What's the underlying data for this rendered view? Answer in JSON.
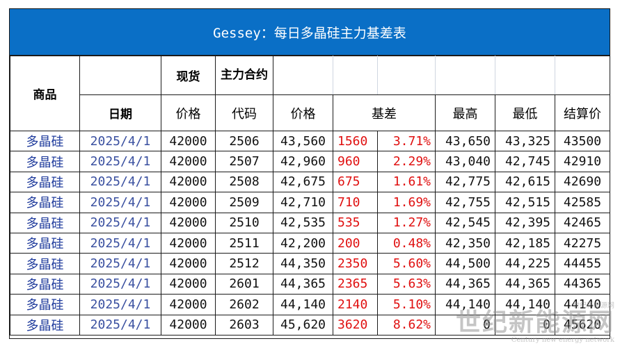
{
  "title": "Gessey：每日多晶硅主力基差表",
  "headers": {
    "product": "商品",
    "spot": "现货",
    "main_contract": "主力合约",
    "date": "日期",
    "price": "价格",
    "code": "代码",
    "futures_price": "价格",
    "basis": "基差",
    "high": "最高",
    "low": "最低",
    "settle": "结算价"
  },
  "rows": [
    {
      "product": "多晶硅",
      "date": "2025/4/1",
      "spot": "42000",
      "code": "2506",
      "price": "43,560",
      "basis": "1560",
      "basis_pct": "3.71%",
      "high": "43,650",
      "low": "43,325",
      "settle": "43500"
    },
    {
      "product": "多晶硅",
      "date": "2025/4/1",
      "spot": "42000",
      "code": "2507",
      "price": "42,960",
      "basis": "960",
      "basis_pct": "2.29%",
      "high": "43,040",
      "low": "42,745",
      "settle": "42910"
    },
    {
      "product": "多晶硅",
      "date": "2025/4/1",
      "spot": "42000",
      "code": "2508",
      "price": "42,675",
      "basis": "675",
      "basis_pct": "1.61%",
      "high": "42,775",
      "low": "42,615",
      "settle": "42690"
    },
    {
      "product": "多晶硅",
      "date": "2025/4/1",
      "spot": "42000",
      "code": "2509",
      "price": "42,710",
      "basis": "710",
      "basis_pct": "1.69%",
      "high": "42,755",
      "low": "42,515",
      "settle": "42585"
    },
    {
      "product": "多晶硅",
      "date": "2025/4/1",
      "spot": "42000",
      "code": "2510",
      "price": "42,535",
      "basis": "535",
      "basis_pct": "1.27%",
      "high": "42,545",
      "low": "42,395",
      "settle": "42465"
    },
    {
      "product": "多晶硅",
      "date": "2025/4/1",
      "spot": "42000",
      "code": "2511",
      "price": "42,200",
      "basis": "200",
      "basis_pct": "0.48%",
      "high": "42,350",
      "low": "42,185",
      "settle": "42275"
    },
    {
      "product": "多晶硅",
      "date": "2025/4/1",
      "spot": "42000",
      "code": "2512",
      "price": "44,350",
      "basis": "2350",
      "basis_pct": "5.60%",
      "high": "44,500",
      "low": "44,225",
      "settle": "44455"
    },
    {
      "product": "多晶硅",
      "date": "2025/4/1",
      "spot": "42000",
      "code": "2601",
      "price": "44,365",
      "basis": "2365",
      "basis_pct": "5.63%",
      "high": "44,365",
      "low": "44,365",
      "settle": "44365"
    },
    {
      "product": "多晶硅",
      "date": "2025/4/1",
      "spot": "42000",
      "code": "2602",
      "price": "44,140",
      "basis": "2140",
      "basis_pct": "5.10%",
      "high": "44,140",
      "low": "44,140",
      "settle": "44140"
    },
    {
      "product": "多晶硅",
      "date": "2025/4/1",
      "spot": "42000",
      "code": "2603",
      "price": "45,620",
      "basis": "3620",
      "basis_pct": "8.62%",
      "high": "0",
      "low": "0",
      "settle": "45620"
    }
  ],
  "watermark": {
    "top": "世纪新能源网",
    "main": "世纪新能源网",
    "sub": "Century new energy network"
  },
  "colors": {
    "title_bg": "#0a6fc6",
    "basis_text": "#e01010",
    "product_text": "#1f3b9c",
    "date_text": "#3a50a0"
  }
}
